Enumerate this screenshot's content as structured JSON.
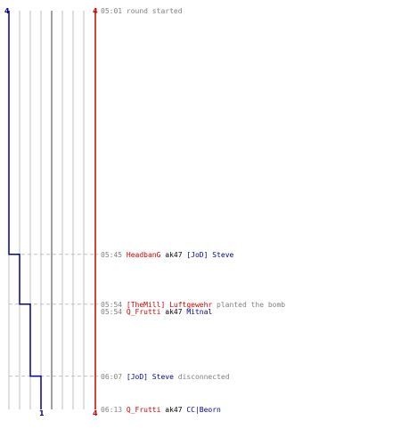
{
  "colors": {
    "terrorist": "#cc0000",
    "counter_terrorist": "#00009a",
    "time": "#808080",
    "weapon": "#000000",
    "grid": "#c0c0c0",
    "guide": "#c0c0c0"
  },
  "chart_data": {
    "type": "line",
    "title": "",
    "grid": true,
    "ylim": [
      0,
      4
    ],
    "time_axis": {
      "start": "05:01",
      "end": "06:13",
      "direction": "down"
    },
    "axis_labels": {
      "left_top": "4",
      "right_top": "4",
      "right_bottom": "4",
      "blue_end": "1"
    },
    "series": [
      {
        "color": "#00009a",
        "points": [
          {
            "time": "05:01",
            "value": 4
          },
          {
            "time": "05:45",
            "value": 3
          },
          {
            "time": "05:54",
            "value": 2
          },
          {
            "time": "06:07",
            "value": 1
          },
          {
            "time": "06:13",
            "value": 1
          }
        ]
      },
      {
        "color": "#cc0000",
        "points": [
          {
            "time": "05:01",
            "value": 4
          },
          {
            "time": "06:13",
            "value": 4
          }
        ]
      }
    ]
  },
  "events": [
    {
      "time": "05:01",
      "parts": [
        {
          "text": "round started",
          "role": "action"
        }
      ]
    },
    {
      "time": "05:45",
      "parts": [
        {
          "text": "HeadbanG",
          "role": "red"
        },
        {
          "text": " ak47 ",
          "role": "weapon"
        },
        {
          "text": "[JoD] Steve",
          "role": "blue"
        }
      ]
    },
    {
      "time": "05:54",
      "parts": [
        {
          "text": "[TheMill] Luftgewehr",
          "role": "red"
        },
        {
          "text": " planted the bomb",
          "role": "action"
        }
      ]
    },
    {
      "time": "05:54",
      "parts": [
        {
          "text": "Q_Frutti",
          "role": "red"
        },
        {
          "text": " ak47 ",
          "role": "weapon"
        },
        {
          "text": "Mitnal",
          "role": "blue"
        }
      ]
    },
    {
      "time": "06:07",
      "parts": [
        {
          "text": "[JoD] Steve",
          "role": "blue"
        },
        {
          "text": " disconnected",
          "role": "action"
        }
      ]
    },
    {
      "time": "06:13",
      "parts": [
        {
          "text": "Q_Frutti",
          "role": "red"
        },
        {
          "text": " ak47 ",
          "role": "weapon"
        },
        {
          "text": "CC|Beorn",
          "role": "blue"
        }
      ]
    }
  ]
}
